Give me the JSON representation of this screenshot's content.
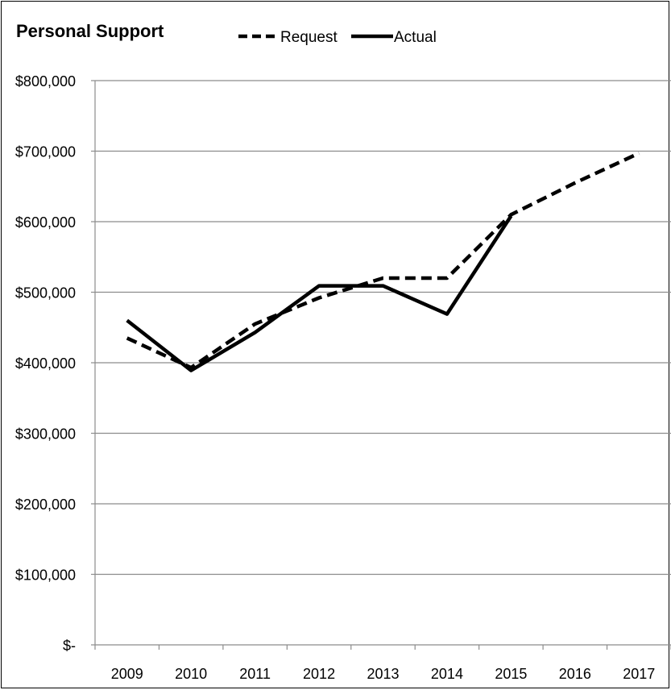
{
  "chart_data": {
    "type": "line",
    "title": "Personal Support",
    "xlabel": "",
    "ylabel": "",
    "categories": [
      "2009",
      "2010",
      "2011",
      "2012",
      "2013",
      "2014",
      "2015",
      "2016",
      "2017"
    ],
    "ylim": [
      0,
      800000
    ],
    "y_ticks": [
      0,
      100000,
      200000,
      300000,
      400000,
      500000,
      600000,
      700000,
      800000
    ],
    "y_tick_labels": [
      "$-",
      "$100,000",
      "$200,000",
      "$300,000",
      "$400,000",
      "$500,000",
      "$600,000",
      "$700,000",
      "$800,000"
    ],
    "grid": "horizontal",
    "legend_position": "top",
    "series": [
      {
        "name": "Request",
        "style": "dashed",
        "color": "#000000",
        "values": [
          435000,
          393000,
          455000,
          492000,
          520000,
          520000,
          610000,
          655000,
          697000
        ]
      },
      {
        "name": "Actual",
        "style": "solid",
        "color": "#000000",
        "values": [
          460000,
          389000,
          443000,
          509000,
          509000,
          469000,
          608000,
          null,
          null
        ]
      }
    ]
  }
}
